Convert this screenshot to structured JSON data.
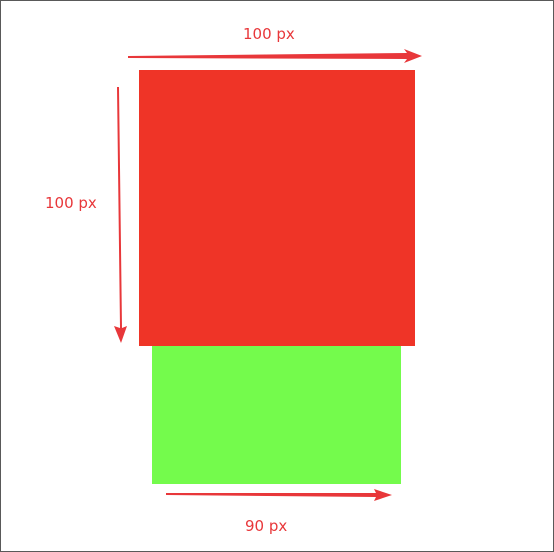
{
  "colors": {
    "red_box": "#EF3427",
    "green_box": "#74FB4C",
    "annotation": "#E8373A",
    "frame_border": "#595959"
  },
  "labels": {
    "top_width": "100 px",
    "left_height": "100 px",
    "bottom_width": "90 px"
  }
}
